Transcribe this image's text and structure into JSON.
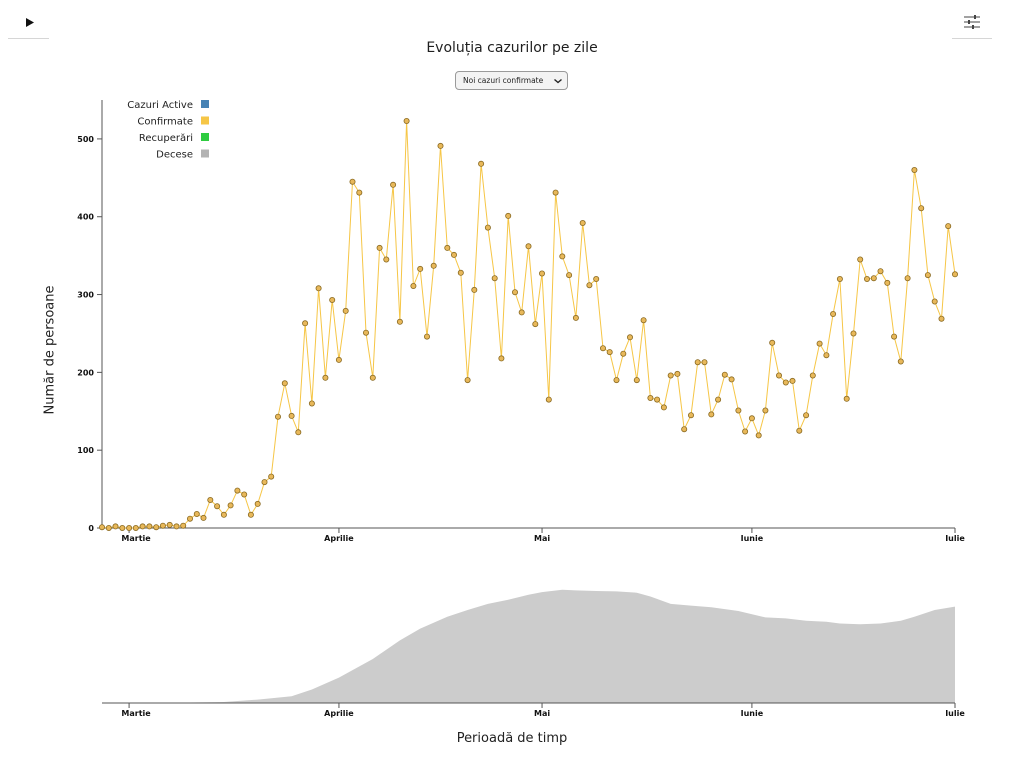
{
  "toolbar": {
    "play_icon": "play-icon",
    "settings_icon": "sliders-icon"
  },
  "selector": {
    "selected": "Noi cazuri confirmate"
  },
  "chart_data": [
    {
      "type": "line",
      "title": "Evoluția cazurilor pe zile",
      "xlabel": "",
      "ylabel": "Număr de persoane",
      "x_tick_labels": [
        "Martie",
        "Aprilie",
        "Mai",
        "Iunie",
        "Iulie"
      ],
      "x_range": [
        "2020-02-26",
        "2020-07-01"
      ],
      "ylim": [
        0,
        550
      ],
      "y_ticks": [
        0,
        100,
        200,
        300,
        400,
        500
      ],
      "grid": false,
      "legend_position": "top-left",
      "legend": [
        {
          "name": "Cazuri Active",
          "color": "#4682b4"
        },
        {
          "name": "Confirmate",
          "color": "#f6c646"
        },
        {
          "name": "Recuperări",
          "color": "#2ecc40"
        },
        {
          "name": "Decese",
          "color": "#b3b3b3"
        }
      ],
      "series": [
        {
          "name": "Confirmate",
          "color": "#f6c646",
          "marker_fill": "#e8b85a",
          "marker_stroke": "#8a6a22",
          "x_start": "2020-02-26",
          "x_step_days": 1,
          "values": [
            1,
            0,
            2,
            0,
            0,
            0,
            2,
            2,
            1,
            3,
            4,
            2,
            3,
            12,
            18,
            13,
            36,
            28,
            17,
            29,
            48,
            43,
            17,
            31,
            59,
            66,
            143,
            186,
            144,
            123,
            263,
            160,
            308,
            193,
            293,
            216,
            279,
            445,
            431,
            251,
            193,
            360,
            345,
            441,
            265,
            523,
            311,
            333,
            246,
            337,
            491,
            360,
            351,
            328,
            190,
            306,
            468,
            386,
            321,
            218,
            401,
            303,
            277,
            362,
            262,
            327,
            165,
            431,
            349,
            325,
            270,
            392,
            312,
            320,
            231,
            226,
            190,
            224,
            245,
            190,
            267,
            167,
            165,
            155,
            196,
            198,
            127,
            145,
            213,
            213,
            146,
            165,
            197,
            191,
            151,
            124,
            141,
            119,
            151,
            238,
            196,
            187,
            189,
            125,
            145,
            196,
            237,
            222,
            275,
            320,
            166,
            250,
            345,
            320,
            321,
            330,
            315,
            246,
            214,
            321,
            460,
            411,
            325,
            291,
            269,
            388,
            326
          ]
        }
      ]
    },
    {
      "type": "area",
      "x_tick_labels": [
        "Martie",
        "Aprilie",
        "Mai",
        "Iunie",
        "Iulie"
      ],
      "x_range": [
        "2020-02-26",
        "2020-07-01"
      ],
      "grid": false,
      "fill_color": "#cccccc",
      "series": [
        {
          "name": "",
          "points": [
            [
              "2020-02-26",
              0
            ],
            [
              "2020-03-05",
              0
            ],
            [
              "2020-03-15",
              3
            ],
            [
              "2020-03-20",
              10
            ],
            [
              "2020-03-25",
              20
            ],
            [
              "2020-03-28",
              40
            ],
            [
              "2020-04-01",
              75
            ],
            [
              "2020-04-06",
              130
            ],
            [
              "2020-04-10",
              185
            ],
            [
              "2020-04-13",
              220
            ],
            [
              "2020-04-17",
              255
            ],
            [
              "2020-04-20",
              275
            ],
            [
              "2020-04-23",
              293
            ],
            [
              "2020-04-26",
              305
            ],
            [
              "2020-04-29",
              320
            ],
            [
              "2020-05-01",
              328
            ],
            [
              "2020-05-04",
              335
            ],
            [
              "2020-05-06",
              333
            ],
            [
              "2020-05-09",
              331
            ],
            [
              "2020-05-12",
              330
            ],
            [
              "2020-05-15",
              326
            ],
            [
              "2020-05-17",
              315
            ],
            [
              "2020-05-20",
              293
            ],
            [
              "2020-05-23",
              288
            ],
            [
              "2020-05-26",
              283
            ],
            [
              "2020-05-30",
              272
            ],
            [
              "2020-06-03",
              253
            ],
            [
              "2020-06-06",
              250
            ],
            [
              "2020-06-09",
              243
            ],
            [
              "2020-06-12",
              240
            ],
            [
              "2020-06-14",
              235
            ],
            [
              "2020-06-17",
              233
            ],
            [
              "2020-06-20",
              235
            ],
            [
              "2020-06-23",
              243
            ],
            [
              "2020-06-25",
              255
            ],
            [
              "2020-06-28",
              275
            ],
            [
              "2020-07-01",
              285
            ]
          ]
        }
      ]
    }
  ]
}
